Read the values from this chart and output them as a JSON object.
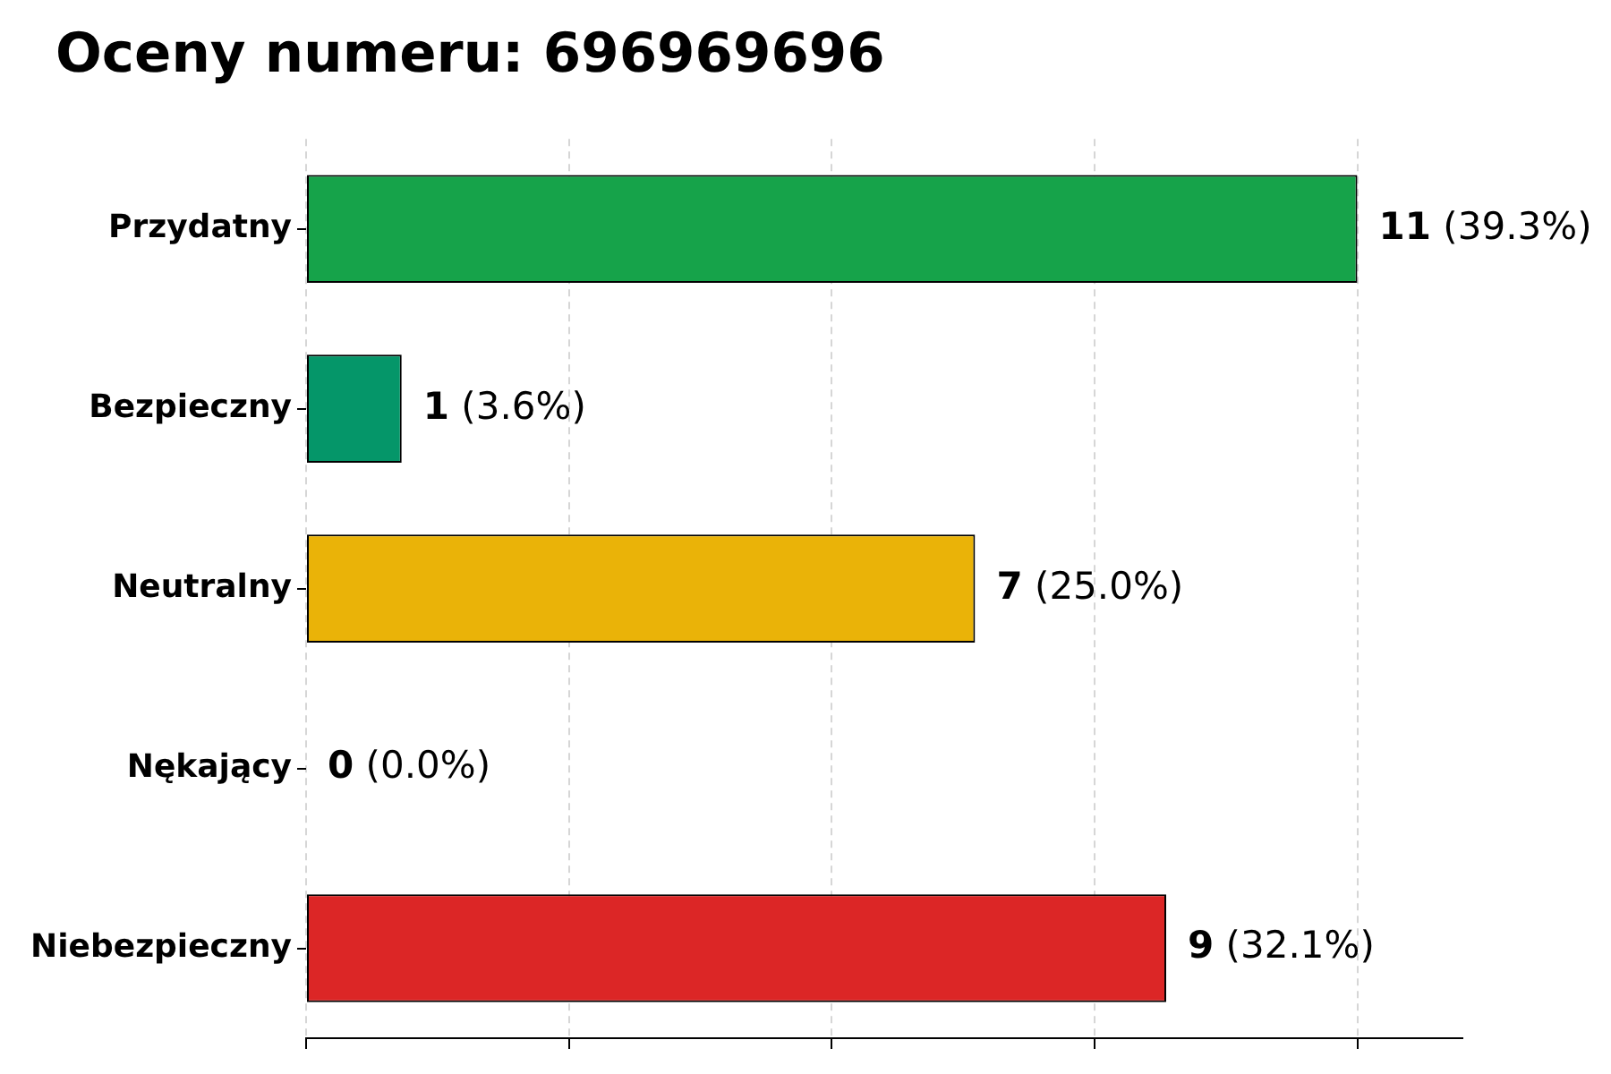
{
  "chart_data": {
    "type": "bar",
    "orientation": "horizontal",
    "title": "Oceny numeru: 696969696",
    "categories": [
      "Przydatny",
      "Bezpieczny",
      "Neutralny",
      "Nękający",
      "Niebezpieczny"
    ],
    "values": [
      11,
      1,
      7,
      0,
      9
    ],
    "colors": [
      "#16a34a",
      "#059669",
      "#eab308",
      "#f97316",
      "#dc2626"
    ],
    "value_labels": [
      "11 (39.3%)",
      "1 (3.6%)",
      "7 (25.0%)",
      "0 (0.0%)",
      "9 (32.1%)"
    ],
    "xlim": [
      0,
      12.1
    ],
    "xticks": [
      {
        "value": 0,
        "label": null
      },
      {
        "value": 2.75,
        "label": null
      },
      {
        "value": 5.5,
        "label": null
      },
      {
        "value": 8.25,
        "label": null
      },
      {
        "value": 11,
        "label": null
      }
    ],
    "grid": "x",
    "tick_labels": "y"
  }
}
